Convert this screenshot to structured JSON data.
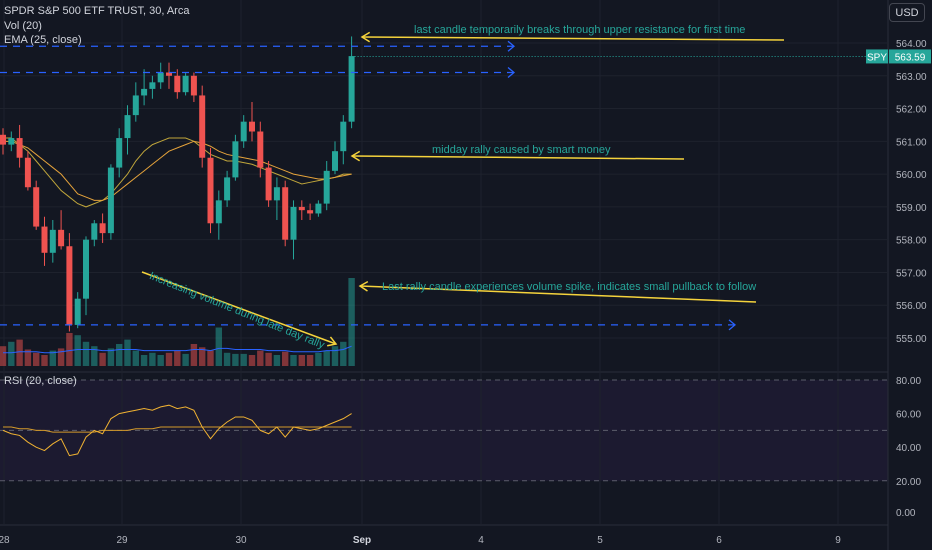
{
  "header": {
    "symbol_line": "SPDR S&P 500 ETF TRUST, 30, Arca",
    "vol_line": "Vol (20)",
    "ema_line": "EMA (25, close)",
    "rsi_line": "RSI (20, close)",
    "currency_button": "USD"
  },
  "price_tag": {
    "symbol": "SPY",
    "value": "563.59"
  },
  "annotations": [
    "last candle temporarily breaks through upper resistance for first time",
    "midday rally caused by smart money",
    "Last rally candle experiences volume spike, indicates small pullback to follow",
    "Increasing volume during late day rally"
  ],
  "colors": {
    "background": "#131722",
    "up": "#26a69a",
    "down": "#ef5350",
    "ema": "#e5a33b",
    "price_avg": "#c0a63b",
    "volume_ma": "#2962ff",
    "rsi": "#f0b232",
    "rsi_ma": "#d49a2a",
    "annotation_line": "#f5d33c",
    "resistance": "#2962ff"
  },
  "chart_data": {
    "type": "candlestick",
    "price_axis": {
      "ticks": [
        "564.00",
        "563.00",
        "562.00",
        "561.00",
        "560.00",
        "559.00",
        "558.00",
        "557.00",
        "556.00",
        "555.00"
      ],
      "range": [
        554.4,
        564.8
      ]
    },
    "time_axis": {
      "ticks": [
        "28",
        "29",
        "30",
        "Sep",
        "4",
        "5",
        "6",
        "9"
      ]
    },
    "rsi_axis": {
      "ticks": [
        "80.00",
        "60.00",
        "40.00",
        "20.00",
        "0.00"
      ],
      "bands": [
        80,
        50,
        20
      ]
    },
    "resistance_levels": [
      563.9,
      563.1,
      555.4
    ],
    "candles": [
      {
        "o": 561.2,
        "h": 561.4,
        "l": 560.6,
        "c": 560.9
      },
      {
        "o": 560.9,
        "h": 561.3,
        "l": 560.7,
        "c": 561.1
      },
      {
        "o": 561.1,
        "h": 561.5,
        "l": 560.2,
        "c": 560.5
      },
      {
        "o": 560.5,
        "h": 560.7,
        "l": 559.5,
        "c": 559.6
      },
      {
        "o": 559.6,
        "h": 559.8,
        "l": 558.3,
        "c": 558.4
      },
      {
        "o": 558.4,
        "h": 558.7,
        "l": 557.2,
        "c": 557.6
      },
      {
        "o": 557.6,
        "h": 558.6,
        "l": 557.3,
        "c": 558.3
      },
      {
        "o": 558.3,
        "h": 558.9,
        "l": 557.7,
        "c": 557.8
      },
      {
        "o": 557.8,
        "h": 558.2,
        "l": 555.2,
        "c": 555.4
      },
      {
        "o": 555.4,
        "h": 556.4,
        "l": 555.3,
        "c": 556.2
      },
      {
        "o": 556.2,
        "h": 558.1,
        "l": 555.7,
        "c": 558.0
      },
      {
        "o": 558.0,
        "h": 558.6,
        "l": 557.8,
        "c": 558.5
      },
      {
        "o": 558.5,
        "h": 558.8,
        "l": 557.9,
        "c": 558.2
      },
      {
        "o": 558.2,
        "h": 560.3,
        "l": 558.0,
        "c": 560.2
      },
      {
        "o": 560.2,
        "h": 561.4,
        "l": 559.9,
        "c": 561.1
      },
      {
        "o": 561.1,
        "h": 562.1,
        "l": 560.6,
        "c": 561.8
      },
      {
        "o": 561.8,
        "h": 562.8,
        "l": 561.6,
        "c": 562.4
      },
      {
        "o": 562.4,
        "h": 563.2,
        "l": 562.1,
        "c": 562.6
      },
      {
        "o": 562.6,
        "h": 563.0,
        "l": 562.3,
        "c": 562.8
      },
      {
        "o": 562.8,
        "h": 563.4,
        "l": 562.6,
        "c": 563.1
      },
      {
        "o": 563.1,
        "h": 563.4,
        "l": 562.6,
        "c": 563.0
      },
      {
        "o": 563.0,
        "h": 563.2,
        "l": 562.3,
        "c": 562.5
      },
      {
        "o": 562.5,
        "h": 563.1,
        "l": 562.4,
        "c": 563.0
      },
      {
        "o": 563.0,
        "h": 563.1,
        "l": 562.2,
        "c": 562.4
      },
      {
        "o": 562.4,
        "h": 562.7,
        "l": 560.2,
        "c": 560.5
      },
      {
        "o": 560.5,
        "h": 560.8,
        "l": 558.2,
        "c": 558.5
      },
      {
        "o": 558.5,
        "h": 559.5,
        "l": 558.0,
        "c": 559.2
      },
      {
        "o": 559.2,
        "h": 560.1,
        "l": 559.0,
        "c": 559.9
      },
      {
        "o": 559.9,
        "h": 561.2,
        "l": 559.8,
        "c": 561.0
      },
      {
        "o": 561.0,
        "h": 561.8,
        "l": 560.8,
        "c": 561.6
      },
      {
        "o": 561.6,
        "h": 562.2,
        "l": 561.0,
        "c": 561.3
      },
      {
        "o": 561.3,
        "h": 561.6,
        "l": 559.9,
        "c": 560.2
      },
      {
        "o": 560.2,
        "h": 560.4,
        "l": 559.0,
        "c": 559.2
      },
      {
        "o": 559.2,
        "h": 559.9,
        "l": 558.6,
        "c": 559.6
      },
      {
        "o": 559.6,
        "h": 559.8,
        "l": 557.8,
        "c": 558.0
      },
      {
        "o": 558.0,
        "h": 559.2,
        "l": 557.4,
        "c": 559.0
      },
      {
        "o": 559.0,
        "h": 559.2,
        "l": 558.6,
        "c": 558.9
      },
      {
        "o": 558.9,
        "h": 559.1,
        "l": 558.6,
        "c": 558.8
      },
      {
        "o": 558.8,
        "h": 559.2,
        "l": 558.7,
        "c": 559.1
      },
      {
        "o": 559.1,
        "h": 560.4,
        "l": 558.9,
        "c": 560.1
      },
      {
        "o": 560.1,
        "h": 561.0,
        "l": 560.0,
        "c": 560.7
      },
      {
        "o": 560.7,
        "h": 561.8,
        "l": 560.3,
        "c": 561.6
      },
      {
        "o": 561.6,
        "h": 564.2,
        "l": 561.4,
        "c": 563.6
      }
    ],
    "volume": [
      18,
      22,
      24,
      15,
      12,
      10,
      14,
      16,
      30,
      28,
      22,
      18,
      12,
      16,
      20,
      24,
      14,
      10,
      12,
      10,
      12,
      14,
      11,
      20,
      17,
      14,
      35,
      12,
      11,
      11,
      10,
      14,
      12,
      10,
      13,
      10,
      10,
      10,
      12,
      14,
      18,
      22,
      80
    ],
    "ema25": [
      561.0,
      561.0,
      560.9,
      560.8,
      560.6,
      560.4,
      560.2,
      560.0,
      559.7,
      559.4,
      559.3,
      559.2,
      559.2,
      559.3,
      559.5,
      559.7,
      559.9,
      560.1,
      560.3,
      560.5,
      560.7,
      560.8,
      560.9,
      561.0,
      560.95,
      560.85,
      560.7,
      560.6,
      560.55,
      560.5,
      560.45,
      560.4,
      560.3,
      560.2,
      560.1,
      560.0,
      559.95,
      559.9,
      559.85,
      559.85,
      559.9,
      559.95,
      560.0
    ],
    "avg_price": [
      561.1,
      561.1,
      560.9,
      560.7,
      560.4,
      560.1,
      559.8,
      559.5,
      559.3,
      559.1,
      559.0,
      559.1,
      559.2,
      559.4,
      559.7,
      560.0,
      560.4,
      560.7,
      560.9,
      561.0,
      561.1,
      561.1,
      561.1,
      561.0,
      560.8,
      560.6,
      560.5,
      560.4,
      560.4,
      560.35,
      560.3,
      560.2,
      560.1,
      560.0,
      559.9,
      559.8,
      559.7,
      559.75,
      559.8,
      559.85,
      559.9,
      560.0,
      560.0
    ],
    "volume_ma": [
      12,
      12,
      13,
      13,
      13,
      12,
      12,
      13,
      14,
      15,
      15,
      15,
      14,
      14,
      15,
      15,
      15,
      14,
      14,
      14,
      14,
      14,
      14,
      15,
      15,
      14,
      16,
      16,
      15,
      15,
      15,
      15,
      14,
      14,
      14,
      13,
      13,
      13,
      13,
      14,
      14,
      15,
      18
    ],
    "rsi": [
      50,
      48,
      47,
      43,
      40,
      38,
      42,
      45,
      35,
      36,
      46,
      50,
      48,
      57,
      60,
      61,
      62,
      63,
      62,
      64,
      65,
      63,
      64,
      62,
      52,
      45,
      51,
      55,
      58,
      58,
      56,
      50,
      48,
      52,
      46,
      52,
      51,
      50,
      51,
      53,
      55,
      57,
      60
    ],
    "rsi_ma": [
      52,
      52,
      51,
      51,
      50,
      50,
      49,
      49,
      49,
      49,
      49,
      49,
      50,
      50,
      50,
      50,
      51,
      51,
      51,
      52,
      52,
      52,
      52,
      52,
      52,
      52,
      52,
      52,
      52,
      52,
      52,
      52,
      52,
      52,
      52,
      52,
      52,
      52,
      52,
      52,
      52,
      52,
      52
    ]
  }
}
